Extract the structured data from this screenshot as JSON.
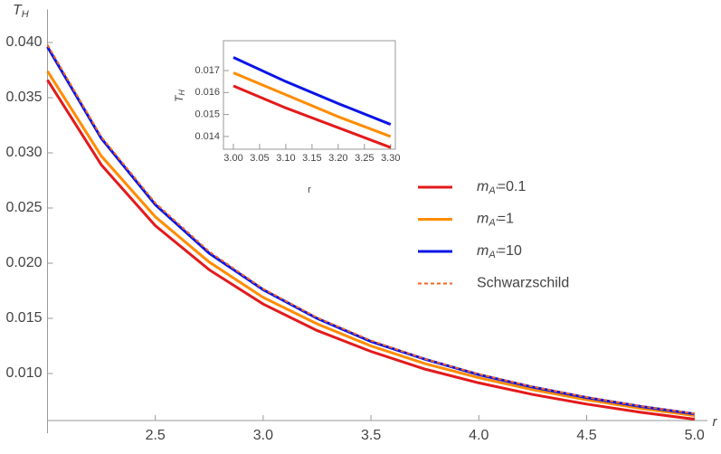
{
  "chart_data": [
    {
      "type": "line",
      "xlabel": "r",
      "ylabel": "TH",
      "x": [
        2.0,
        2.25,
        2.5,
        2.75,
        3.0,
        3.25,
        3.5,
        3.75,
        4.0,
        4.25,
        4.5,
        4.75,
        5.0
      ],
      "series": [
        {
          "name": "mA'=0.1",
          "color": "#e31a1c",
          "values": [
            0.0366,
            0.0289,
            0.0234,
            0.0194,
            0.0163,
            0.0139,
            0.012,
            0.0104,
            0.00915,
            0.0081,
            0.00723,
            0.00649,
            0.00586
          ]
        },
        {
          "name": "mA'=1",
          "color": "#ff8c00",
          "values": [
            0.0374,
            0.0297,
            0.0242,
            0.0201,
            0.0169,
            0.0145,
            0.0125,
            0.0109,
            0.00962,
            0.00853,
            0.00762,
            0.00685,
            0.00619
          ]
        },
        {
          "name": "mA'=10",
          "color": "#0a14e6",
          "values": [
            0.0396,
            0.0313,
            0.0253,
            0.0209,
            0.0176,
            0.015,
            0.0129,
            0.0113,
            0.0099,
            0.00877,
            0.00782,
            0.00702,
            0.00634
          ]
        },
        {
          "name": "Schwarzschild",
          "color": "#f26522",
          "dashed": true,
          "values": [
            0.03979,
            0.03144,
            0.02546,
            0.02105,
            0.01768,
            0.01507,
            0.01299,
            0.01132,
            0.00995,
            0.00881,
            0.00786,
            0.00705,
            0.00637
          ]
        }
      ],
      "xlim": [
        2.0,
        5.06
      ],
      "ylim": [
        0.00574,
        0.043
      ],
      "xticks": [
        2.5,
        {
          "value": 3.0,
          "label": "3.0"
        },
        3.5,
        {
          "value": 4.0,
          "label": "4.0"
        },
        4.5,
        {
          "value": 5.0,
          "label": "5.0"
        }
      ],
      "yticks": [
        {
          "value": 0.01,
          "label": "0.010"
        },
        0.015,
        {
          "value": 0.02,
          "label": "0.020"
        },
        0.025,
        {
          "value": 0.03,
          "label": "0.030"
        },
        0.035,
        {
          "value": 0.04,
          "label": "0.040"
        }
      ],
      "legend": "right"
    },
    {
      "type": "line",
      "xlabel": "r",
      "ylabel": "TH",
      "x": [
        3.0,
        3.1,
        3.2,
        3.3
      ],
      "series": [
        {
          "color": "#e31a1c",
          "values": [
            0.0163,
            0.0153,
            0.0144,
            0.0135
          ]
        },
        {
          "color": "#ff8c00",
          "values": [
            0.0169,
            0.0159,
            0.0149,
            0.014
          ]
        },
        {
          "color": "#0a14e6",
          "values": [
            0.0176,
            0.0165,
            0.0155,
            0.01455
          ]
        }
      ],
      "xlim": [
        2.981,
        3.309
      ],
      "ylim": [
        0.01342,
        0.01836
      ],
      "xticks": [
        {
          "value": 3.0,
          "label": "3.00"
        },
        {
          "value": 3.05,
          "label": "3.05"
        },
        {
          "value": 3.1,
          "label": "3.10"
        },
        {
          "value": 3.15,
          "label": "3.15"
        },
        {
          "value": 3.2,
          "label": "3.20"
        },
        {
          "value": 3.25,
          "label": "3.25"
        },
        {
          "value": 3.3,
          "label": "3.30"
        }
      ],
      "yticks": [
        0.014,
        0.015,
        0.016,
        0.017
      ]
    }
  ]
}
